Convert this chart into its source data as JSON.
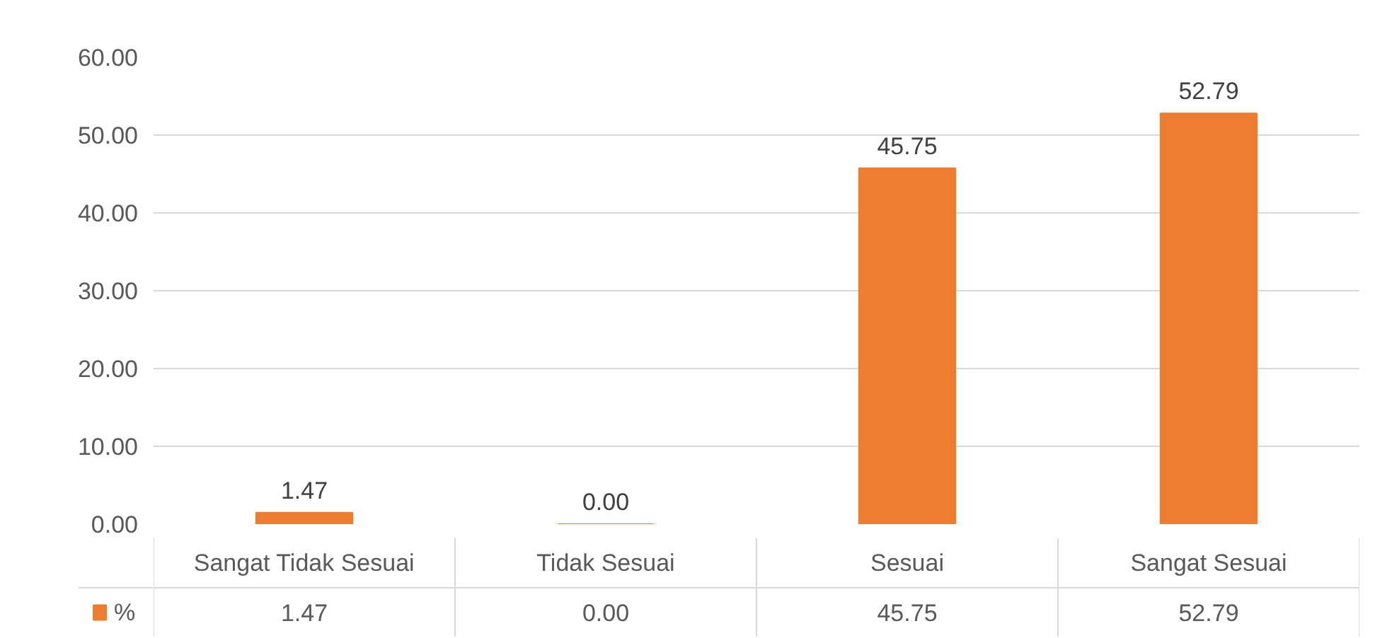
{
  "chart_data": {
    "type": "bar",
    "categories": [
      "Sangat Tidak Sesuai",
      "Tidak Sesuai",
      "Sesuai",
      "Sangat Sesuai"
    ],
    "series": [
      {
        "name": "%",
        "color": "#ed7d31",
        "values": [
          1.47,
          0.0,
          45.75,
          52.79
        ]
      }
    ],
    "ylim": [
      0,
      60
    ],
    "yticks": [
      {
        "value": 0,
        "label": "0.00"
      },
      {
        "value": 10,
        "label": "10.00"
      },
      {
        "value": 20,
        "label": "20.00"
      },
      {
        "value": 30,
        "label": "30.00"
      },
      {
        "value": 40,
        "label": "40.00"
      },
      {
        "value": 50,
        "label": "50.00"
      },
      {
        "value": 60,
        "label": "60.00"
      }
    ],
    "value_labels": [
      "1.47",
      "0.00",
      "45.75",
      "52.79"
    ],
    "grid": "y",
    "legend": "bottom"
  }
}
